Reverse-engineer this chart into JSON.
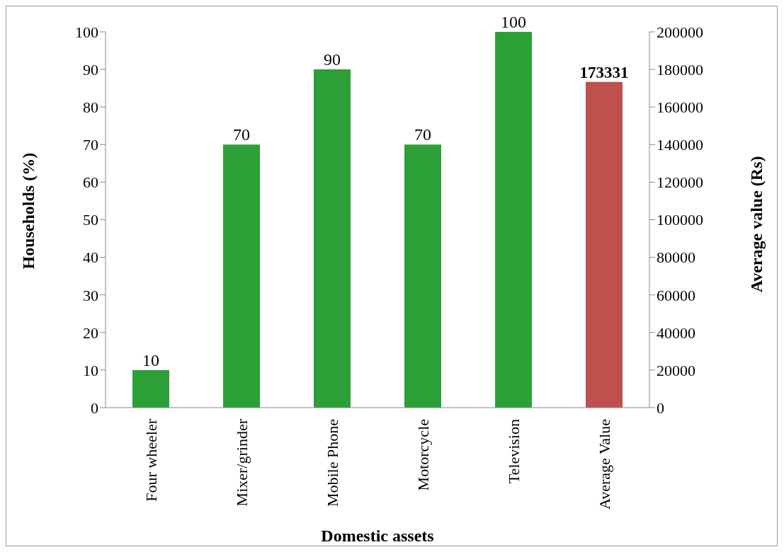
{
  "chart_data": {
    "type": "bar",
    "xlabel": "Domestic assets",
    "ylabel": "Households (%)",
    "y2label": "Average value (Rs)",
    "categories": [
      "Four wheeler",
      "Mixer/grinder",
      "Mobile Phone",
      "Motorcycle",
      "Television",
      "Average Value"
    ],
    "series": [
      {
        "color": "#2ca037",
        "values": [
          10,
          70,
          90,
          70,
          100,
          null
        ]
      },
      {
        "color": "#c0504d",
        "axis": "y2",
        "values": [
          null,
          null,
          null,
          null,
          null,
          173331
        ]
      }
    ],
    "ylim": [
      0,
      100
    ],
    "yticks": [
      0,
      10,
      20,
      30,
      40,
      50,
      60,
      70,
      80,
      90,
      100
    ],
    "y2lim": [
      0,
      200000
    ],
    "y2ticks": [
      0,
      20000,
      40000,
      60000,
      80000,
      100000,
      120000,
      140000,
      160000,
      180000,
      200000
    ],
    "data_labels": true,
    "grid": false,
    "legend": false
  }
}
